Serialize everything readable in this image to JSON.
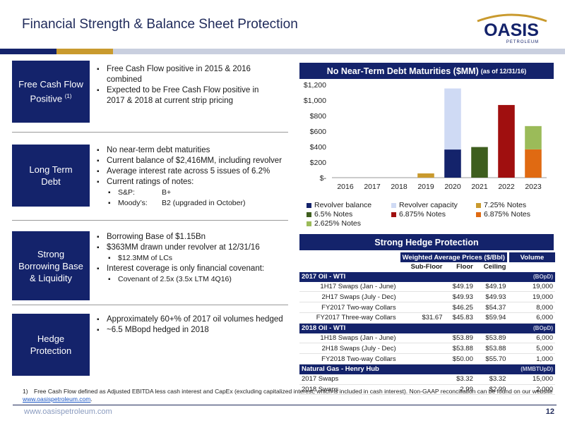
{
  "title": "Financial Strength & Balance Sheet Protection",
  "logo": {
    "main": "OASIS",
    "sub": "PETROLEUM"
  },
  "colors": {
    "navy": "#14236b",
    "gold": "#c99a2e",
    "light_blue": "#cfdaf4",
    "orange": "#d4860f",
    "green": "#3e5e1e",
    "red": "#a00f0f",
    "orange2": "#e06a12",
    "lime": "#9bbb59"
  },
  "sections": [
    {
      "label": "Free Cash Flow Positive",
      "sup": "(1)",
      "bullets": [
        {
          "text": "Free Cash Flow positive in 2015 & 2016 combined",
          "level": 1
        },
        {
          "text": "Expected to be Free Cash Flow positive in 2017 & 2018 at current strip pricing",
          "level": 1
        }
      ]
    },
    {
      "label": "Long Term Debt",
      "sup": "",
      "bullets": [
        {
          "text": "No near-term debt maturities",
          "level": 1
        },
        {
          "text": "Current balance of $2,416MM, including revolver",
          "level": 1
        },
        {
          "text": "Average interest rate across 5 issues of 6.2%",
          "level": 1
        },
        {
          "text": "Current ratings of notes:",
          "level": 1
        },
        {
          "text": "S&P:",
          "value": "B+",
          "level": 2
        },
        {
          "text": "Moody’s:",
          "value": "B2 (upgraded in October)",
          "level": 2
        }
      ]
    },
    {
      "label": "Strong Borrowing Base & Liquidity",
      "sup": "",
      "bullets": [
        {
          "text": "Borrowing Base of $1.15Bn",
          "level": 1
        },
        {
          "text": "$363MM drawn under revolver at 12/31/16",
          "level": 1
        },
        {
          "text": "$12.3MM of LCs",
          "level": 2
        },
        {
          "text": "Interest coverage is only financial covenant:",
          "level": 1
        },
        {
          "text": "Covenant of 2.5x (3.5x LTM 4Q16)",
          "level": 2
        }
      ]
    },
    {
      "label": "Hedge Protection",
      "sup": "",
      "bullets": [
        {
          "text": "Approximately 60+% of 2017 oil volumes hedged",
          "level": 1
        },
        {
          "text": "~6.5 MBopd hedged in 2018",
          "level": 1
        }
      ]
    }
  ],
  "chart_panel": {
    "title": "No Near-Term Debt Maturities ($MM)",
    "note": "(as of 12/31/16)"
  },
  "chart_data": {
    "type": "bar",
    "stacked": true,
    "title": "No Near-Term Debt Maturities ($MM)",
    "categories": [
      "2016",
      "2017",
      "2018",
      "2019",
      "2020",
      "2021",
      "2022",
      "2023"
    ],
    "ylim": [
      0,
      1200
    ],
    "yticks": [
      0,
      200,
      400,
      600,
      800,
      1000,
      1200
    ],
    "ytick_labels": [
      "$-",
      "$200",
      "$400",
      "$600",
      "$800",
      "$1,000",
      "$1,200"
    ],
    "grid": false,
    "legend": "bottom",
    "series": [
      {
        "name": "Revolver balance",
        "color": "#14236b",
        "values": [
          0,
          0,
          0,
          0,
          363,
          0,
          0,
          0
        ]
      },
      {
        "name": "Revolver capacity",
        "color": "#cfdaf4",
        "values": [
          0,
          0,
          0,
          0,
          787,
          0,
          0,
          0
        ]
      },
      {
        "name": "7.25% Notes",
        "color": "#c99a2e",
        "values": [
          0,
          0,
          0,
          55,
          0,
          0,
          0,
          0
        ]
      },
      {
        "name": "6.5% Notes",
        "color": "#3e5e1e",
        "values": [
          0,
          0,
          0,
          0,
          0,
          395,
          0,
          0
        ]
      },
      {
        "name": "6.875% Notes",
        "color": "#a00f0f",
        "values": [
          0,
          0,
          0,
          0,
          0,
          0,
          937,
          0
        ]
      },
      {
        "name": "6.875% Notes",
        "color": "#e06a12",
        "values": [
          0,
          0,
          0,
          0,
          0,
          0,
          0,
          365
        ]
      },
      {
        "name": "2.625% Notes",
        "color": "#9bbb59",
        "values": [
          0,
          0,
          0,
          0,
          0,
          0,
          0,
          300
        ]
      }
    ]
  },
  "hedge": {
    "title": "Strong Hedge Protection",
    "group_header": "Weighted Average Prices ($/Bbl)",
    "volume_header": "Volume",
    "columns": [
      "Sub-Floor",
      "Floor",
      "Ceiling"
    ],
    "sections": [
      {
        "name": "2017 Oil - WTI",
        "unit": "(BOpD)",
        "rows": [
          {
            "label": "1H17 Swaps (Jan - June)",
            "sub_floor": "",
            "floor": "$49.19",
            "ceiling": "$49.19",
            "volume": "19,000"
          },
          {
            "label": "2H17 Swaps (July - Dec)",
            "sub_floor": "",
            "floor": "$49.93",
            "ceiling": "$49.93",
            "volume": "19,000"
          },
          {
            "label": "FY2017 Two-way Collars",
            "sub_floor": "",
            "floor": "$46.25",
            "ceiling": "$54.37",
            "volume": "8,000"
          },
          {
            "label": "FY2017 Three-way Collars",
            "sub_floor": "$31.67",
            "floor": "$45.83",
            "ceiling": "$59.94",
            "volume": "6,000"
          }
        ]
      },
      {
        "name": "2018 Oil - WTI",
        "unit": "(BOpD)",
        "rows": [
          {
            "label": "1H18 Swaps (Jan - June)",
            "sub_floor": "",
            "floor": "$53.89",
            "ceiling": "$53.89",
            "volume": "6,000"
          },
          {
            "label": "2H18 Swaps (July - Dec)",
            "sub_floor": "",
            "floor": "$53.88",
            "ceiling": "$53.88",
            "volume": "5,000"
          },
          {
            "label": "FY2018 Two-way Collars",
            "sub_floor": "",
            "floor": "$50.00",
            "ceiling": "$55.70",
            "volume": "1,000"
          }
        ]
      },
      {
        "name": "Natural Gas - Henry Hub",
        "unit": "(MMBTUpD)",
        "rows": [
          {
            "label": "2017 Swaps",
            "sub_floor": "",
            "floor": "$3.32",
            "ceiling": "$3.32",
            "volume": "15,000",
            "left": true
          },
          {
            "label": "2018 Swaps",
            "sub_floor": "",
            "floor": "2.99",
            "ceiling": "$2.99",
            "volume": "2,000",
            "left": true
          }
        ]
      }
    ]
  },
  "footnote": {
    "marker": "1)",
    "text": "Free Cash Flow defined as Adjusted EBITDA less cash interest and CapEx (excluding capitalized interest, which is included in cash interest). Non-GAAP reconciliation can be found on our website ",
    "link": "www.oasispetroleum.com",
    "end": "."
  },
  "footer": {
    "website": "www.oasispetroleum.com",
    "page": "12"
  }
}
